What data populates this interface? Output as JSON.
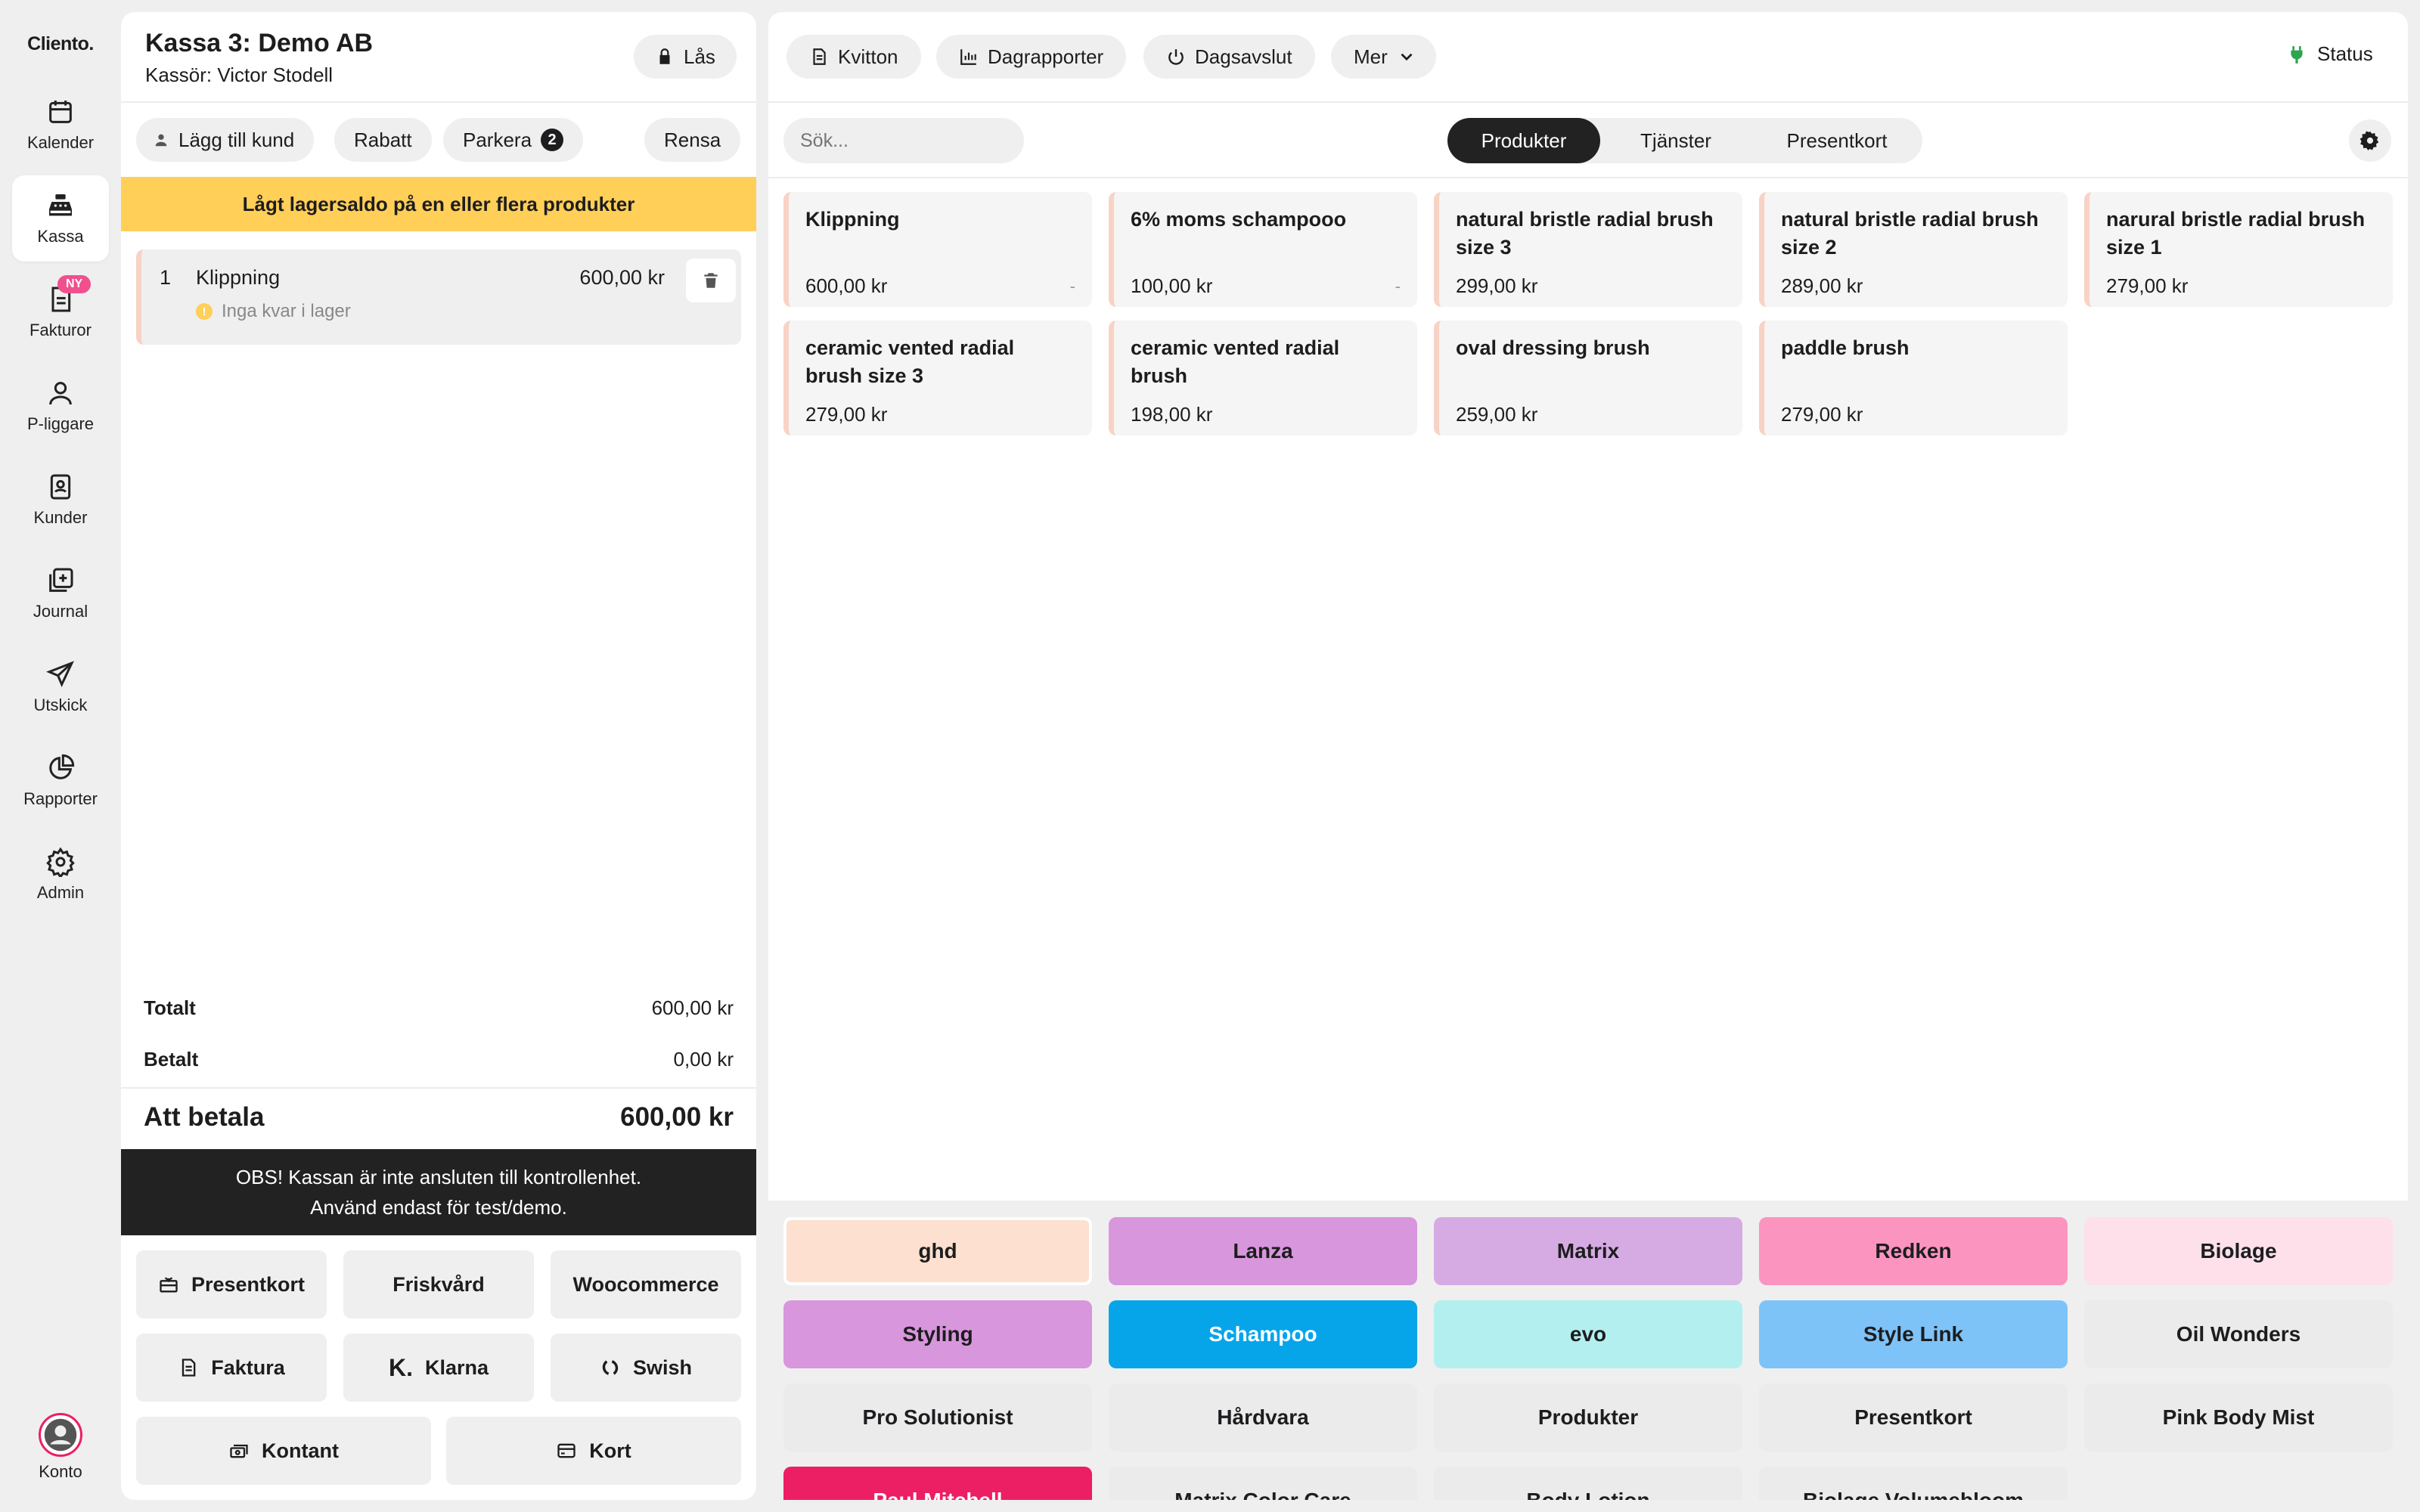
{
  "sidebar": {
    "logo": "Cliento.",
    "items": [
      {
        "label": "Kalender",
        "icon": "calendar-icon"
      },
      {
        "label": "Kassa",
        "icon": "cash-register-icon",
        "active": true
      },
      {
        "label": "Fakturor",
        "icon": "invoice-icon",
        "badge": "NY"
      },
      {
        "label": "P-liggare",
        "icon": "person-icon"
      },
      {
        "label": "Kunder",
        "icon": "contacts-icon"
      },
      {
        "label": "Journal",
        "icon": "journal-icon"
      },
      {
        "label": "Utskick",
        "icon": "send-icon"
      },
      {
        "label": "Rapporter",
        "icon": "chart-icon"
      },
      {
        "label": "Admin",
        "icon": "gear-icon"
      }
    ],
    "account": {
      "label": "Konto",
      "icon": "avatar-icon"
    }
  },
  "cart": {
    "title": "Kassa 3: Demo AB",
    "cashier": "Kassör: Victor Stodell",
    "lock_label": "Lås",
    "actions": {
      "add_customer": "Lägg till kund",
      "discount": "Rabatt",
      "park": "Parkera",
      "park_count": "2",
      "clear": "Rensa"
    },
    "warning": "Lågt lagersaldo på en eller flera produkter",
    "items": [
      {
        "qty": "1",
        "name": "Klippning",
        "price": "600,00 kr",
        "note": "Inga kvar i lager"
      }
    ],
    "totals": {
      "total_label": "Totalt",
      "total_value": "600,00 kr",
      "paid_label": "Betalt",
      "paid_value": "0,00 kr",
      "due_label": "Att betala",
      "due_value": "600,00 kr"
    },
    "notice_line1": "OBS! Kassan är inte ansluten till kontrollenhet.",
    "notice_line2": "Använd endast för test/demo.",
    "payments": {
      "presentkort": "Presentkort",
      "friskvard": "Friskvård",
      "woocommerce": "Woocommerce",
      "faktura": "Faktura",
      "klarna": "Klarna",
      "swish": "Swish",
      "kontant": "Kontant",
      "kort": "Kort"
    }
  },
  "toolbar": {
    "receipts": "Kvitton",
    "day_reports": "Dagrapporter",
    "day_close": "Dagsavslut",
    "more": "Mer",
    "status": "Status"
  },
  "search": {
    "placeholder": "Sök..."
  },
  "tabs": [
    "Produkter",
    "Tjänster",
    "Presentkort"
  ],
  "products": [
    {
      "name": "Klippning",
      "price": "600,00 kr",
      "dash": "-"
    },
    {
      "name": "6% moms schampooo",
      "price": "100,00 kr",
      "dash": "-"
    },
    {
      "name": "natural bristle radial brush size 3",
      "price": "299,00 kr"
    },
    {
      "name": "natural bristle radial brush size 2",
      "price": "289,00 kr"
    },
    {
      "name": "narural bristle radial brush size 1",
      "price": "279,00 kr"
    },
    {
      "name": "ceramic vented radial brush size 3",
      "price": "279,00 kr"
    },
    {
      "name": "ceramic vented radial brush",
      "price": "198,00 kr"
    },
    {
      "name": "oval dressing brush",
      "price": "259,00 kr"
    },
    {
      "name": "paddle brush",
      "price": "279,00 kr"
    }
  ],
  "categories": [
    {
      "label": "ghd",
      "color": "#fde0d0",
      "text": "#1d1d1f"
    },
    {
      "label": "Lanza",
      "color": "#d896dc",
      "text": "#1d1d1f"
    },
    {
      "label": "Matrix",
      "color": "#d6abe3",
      "text": "#1d1d1f"
    },
    {
      "label": "Redken",
      "color": "#fc94c0",
      "text": "#1d1d1f"
    },
    {
      "label": "Biolage",
      "color": "#fde0ea",
      "text": "#1d1d1f"
    },
    {
      "label": "Styling",
      "color": "#d896dc",
      "text": "#1d1d1f"
    },
    {
      "label": "Schampoo",
      "color": "#06a5ea",
      "text": "#ffffff"
    },
    {
      "label": "evo",
      "color": "#b3efee",
      "text": "#1d1d1f"
    },
    {
      "label": "Style Link",
      "color": "#7ec3f8",
      "text": "#1d1d1f"
    },
    {
      "label": "Oil Wonders",
      "color": "#ebebeb",
      "text": "#1d1d1f"
    },
    {
      "label": "Pro Solutionist",
      "color": "#ebebeb",
      "text": "#1d1d1f"
    },
    {
      "label": "Hårdvara",
      "color": "#ebebeb",
      "text": "#1d1d1f"
    },
    {
      "label": "Produkter",
      "color": "#ebebeb",
      "text": "#1d1d1f"
    },
    {
      "label": "Presentkort",
      "color": "#ebebeb",
      "text": "#1d1d1f"
    },
    {
      "label": "Pink Body Mist",
      "color": "#ebebeb",
      "text": "#1d1d1f"
    },
    {
      "label": "Paul Mitchell",
      "color": "#ec1e64",
      "text": "#ffffff"
    },
    {
      "label": "Matrix Color Care",
      "color": "#ebebeb",
      "text": "#1d1d1f"
    },
    {
      "label": "Body Lotion",
      "color": "#ebebeb",
      "text": "#1d1d1f"
    },
    {
      "label": "Biolage Volumebloom",
      "color": "#ebebeb",
      "text": "#1d1d1f"
    }
  ]
}
